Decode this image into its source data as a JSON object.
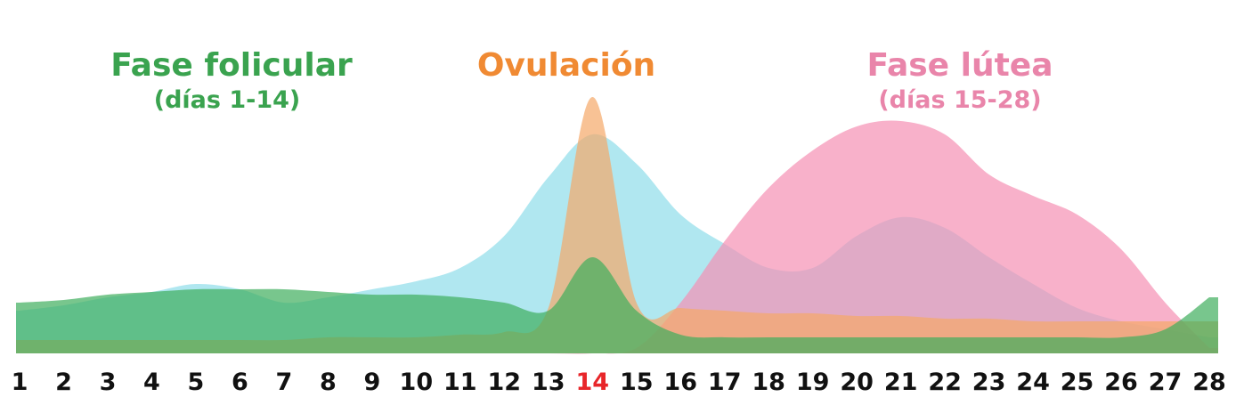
{
  "chart_data": {
    "type": "area",
    "annotations": [
      {
        "text": "Fase folicular",
        "color": "#3aa34f"
      },
      {
        "text": "(días 1-14)",
        "color": "#3aa34f"
      },
      {
        "text": "Ovulación",
        "color": "#f08a33"
      },
      {
        "text": "Fase lútea",
        "color": "#e985aa"
      },
      {
        "text": "(días 15-28)",
        "color": "#e985aa"
      }
    ],
    "categories": [
      "1",
      "2",
      "3",
      "4",
      "5",
      "6",
      "7",
      "8",
      "9",
      "10",
      "11",
      "12",
      "13",
      "14",
      "15",
      "16",
      "17",
      "18",
      "19",
      "20",
      "21",
      "22",
      "23",
      "24",
      "25",
      "26",
      "27",
      "28"
    ],
    "highlight_categories": [
      "14"
    ],
    "highlight_color": "#e8262a",
    "ylim": [
      0,
      100
    ],
    "series": [
      {
        "color": "#8fdde9",
        "values": [
          16,
          18,
          21,
          23,
          26,
          24,
          19,
          21,
          24,
          27,
          32,
          44,
          66,
          82,
          71,
          52,
          41,
          32,
          32,
          44,
          51,
          47,
          36,
          26,
          17,
          12,
          9,
          6
        ]
      },
      {
        "color": "#f590b3",
        "values": [
          0,
          0,
          0,
          0,
          0,
          0,
          0,
          0,
          0,
          0,
          0,
          0,
          0,
          0,
          2,
          19,
          42,
          62,
          76,
          85,
          87,
          82,
          67,
          59,
          52,
          39,
          19,
          2
        ]
      },
      {
        "color": "#f5a868",
        "values": [
          5,
          5,
          5,
          5,
          5,
          5,
          5,
          6,
          6,
          6,
          7,
          8,
          17,
          96,
          19,
          17,
          16,
          15,
          15,
          14,
          14,
          13,
          13,
          12,
          12,
          12,
          12,
          12
        ]
      },
      {
        "color": "#3fae5c",
        "values": [
          19,
          20,
          22,
          23,
          24,
          24,
          24,
          23,
          22,
          22,
          21,
          19,
          16,
          36,
          16,
          7,
          6,
          6,
          6,
          6,
          6,
          6,
          6,
          6,
          6,
          6,
          9,
          21
        ]
      }
    ]
  }
}
